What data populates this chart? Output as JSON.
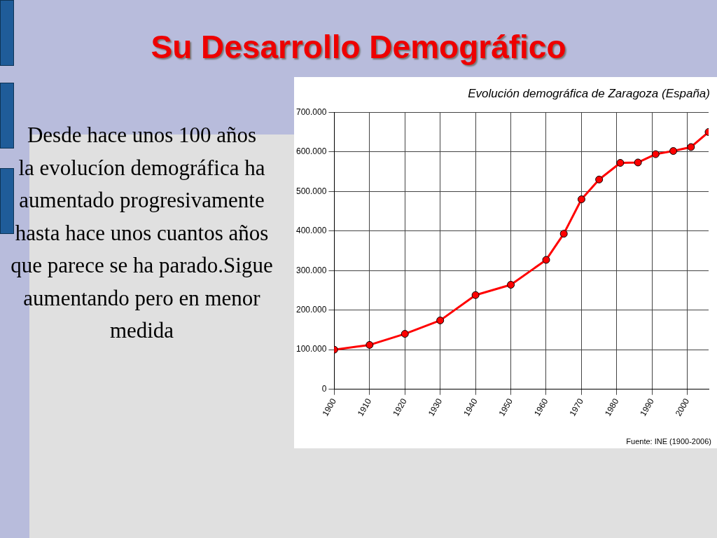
{
  "chart_data": {
    "type": "line",
    "title": "Su Desarrollo Demográfico",
    "subtitle": "Evolución demográfica de Zaragoza (España)",
    "annotations": [
      "Desde hace unos 100 años\nla evolucíon demográfica ha aumentado progresivamente hasta hace unos cuantos años que parece se ha parado.Sigue aumentando pero en menor medida",
      "Fuente: INE (1900-2006)"
    ],
    "x": [
      1900,
      1910,
      1920,
      1930,
      1940,
      1950,
      1960,
      1965,
      1970,
      1975,
      1981,
      1986,
      1991,
      1996,
      2001,
      2006
    ],
    "series": [
      {
        "color": "#ff0000",
        "values": [
          100000,
          112000,
          140000,
          174000,
          238000,
          264000,
          327000,
          393000,
          480000,
          530000,
          572000,
          573000,
          594000,
          602000,
          612000,
          650000
        ]
      }
    ],
    "xlim": [
      1900,
      2006
    ],
    "xticks": [
      1900,
      1910,
      1920,
      1930,
      1940,
      1950,
      1960,
      1970,
      1980,
      1990,
      2000
    ],
    "ylim": [
      0,
      700000
    ],
    "yticks": [
      {
        "value": 0,
        "label": "0"
      },
      {
        "value": 100000,
        "label": "100.000"
      },
      {
        "value": 200000,
        "label": "200.000"
      },
      {
        "value": 300000,
        "label": "300.000"
      },
      {
        "value": 400000,
        "label": "400.000"
      },
      {
        "value": 500000,
        "label": "500.000"
      },
      {
        "value": 600000,
        "label": "600.000"
      },
      {
        "value": 700000,
        "label": "700.000"
      }
    ],
    "grid": true,
    "legend": false,
    "marker": "circle",
    "line_style": "solid"
  }
}
